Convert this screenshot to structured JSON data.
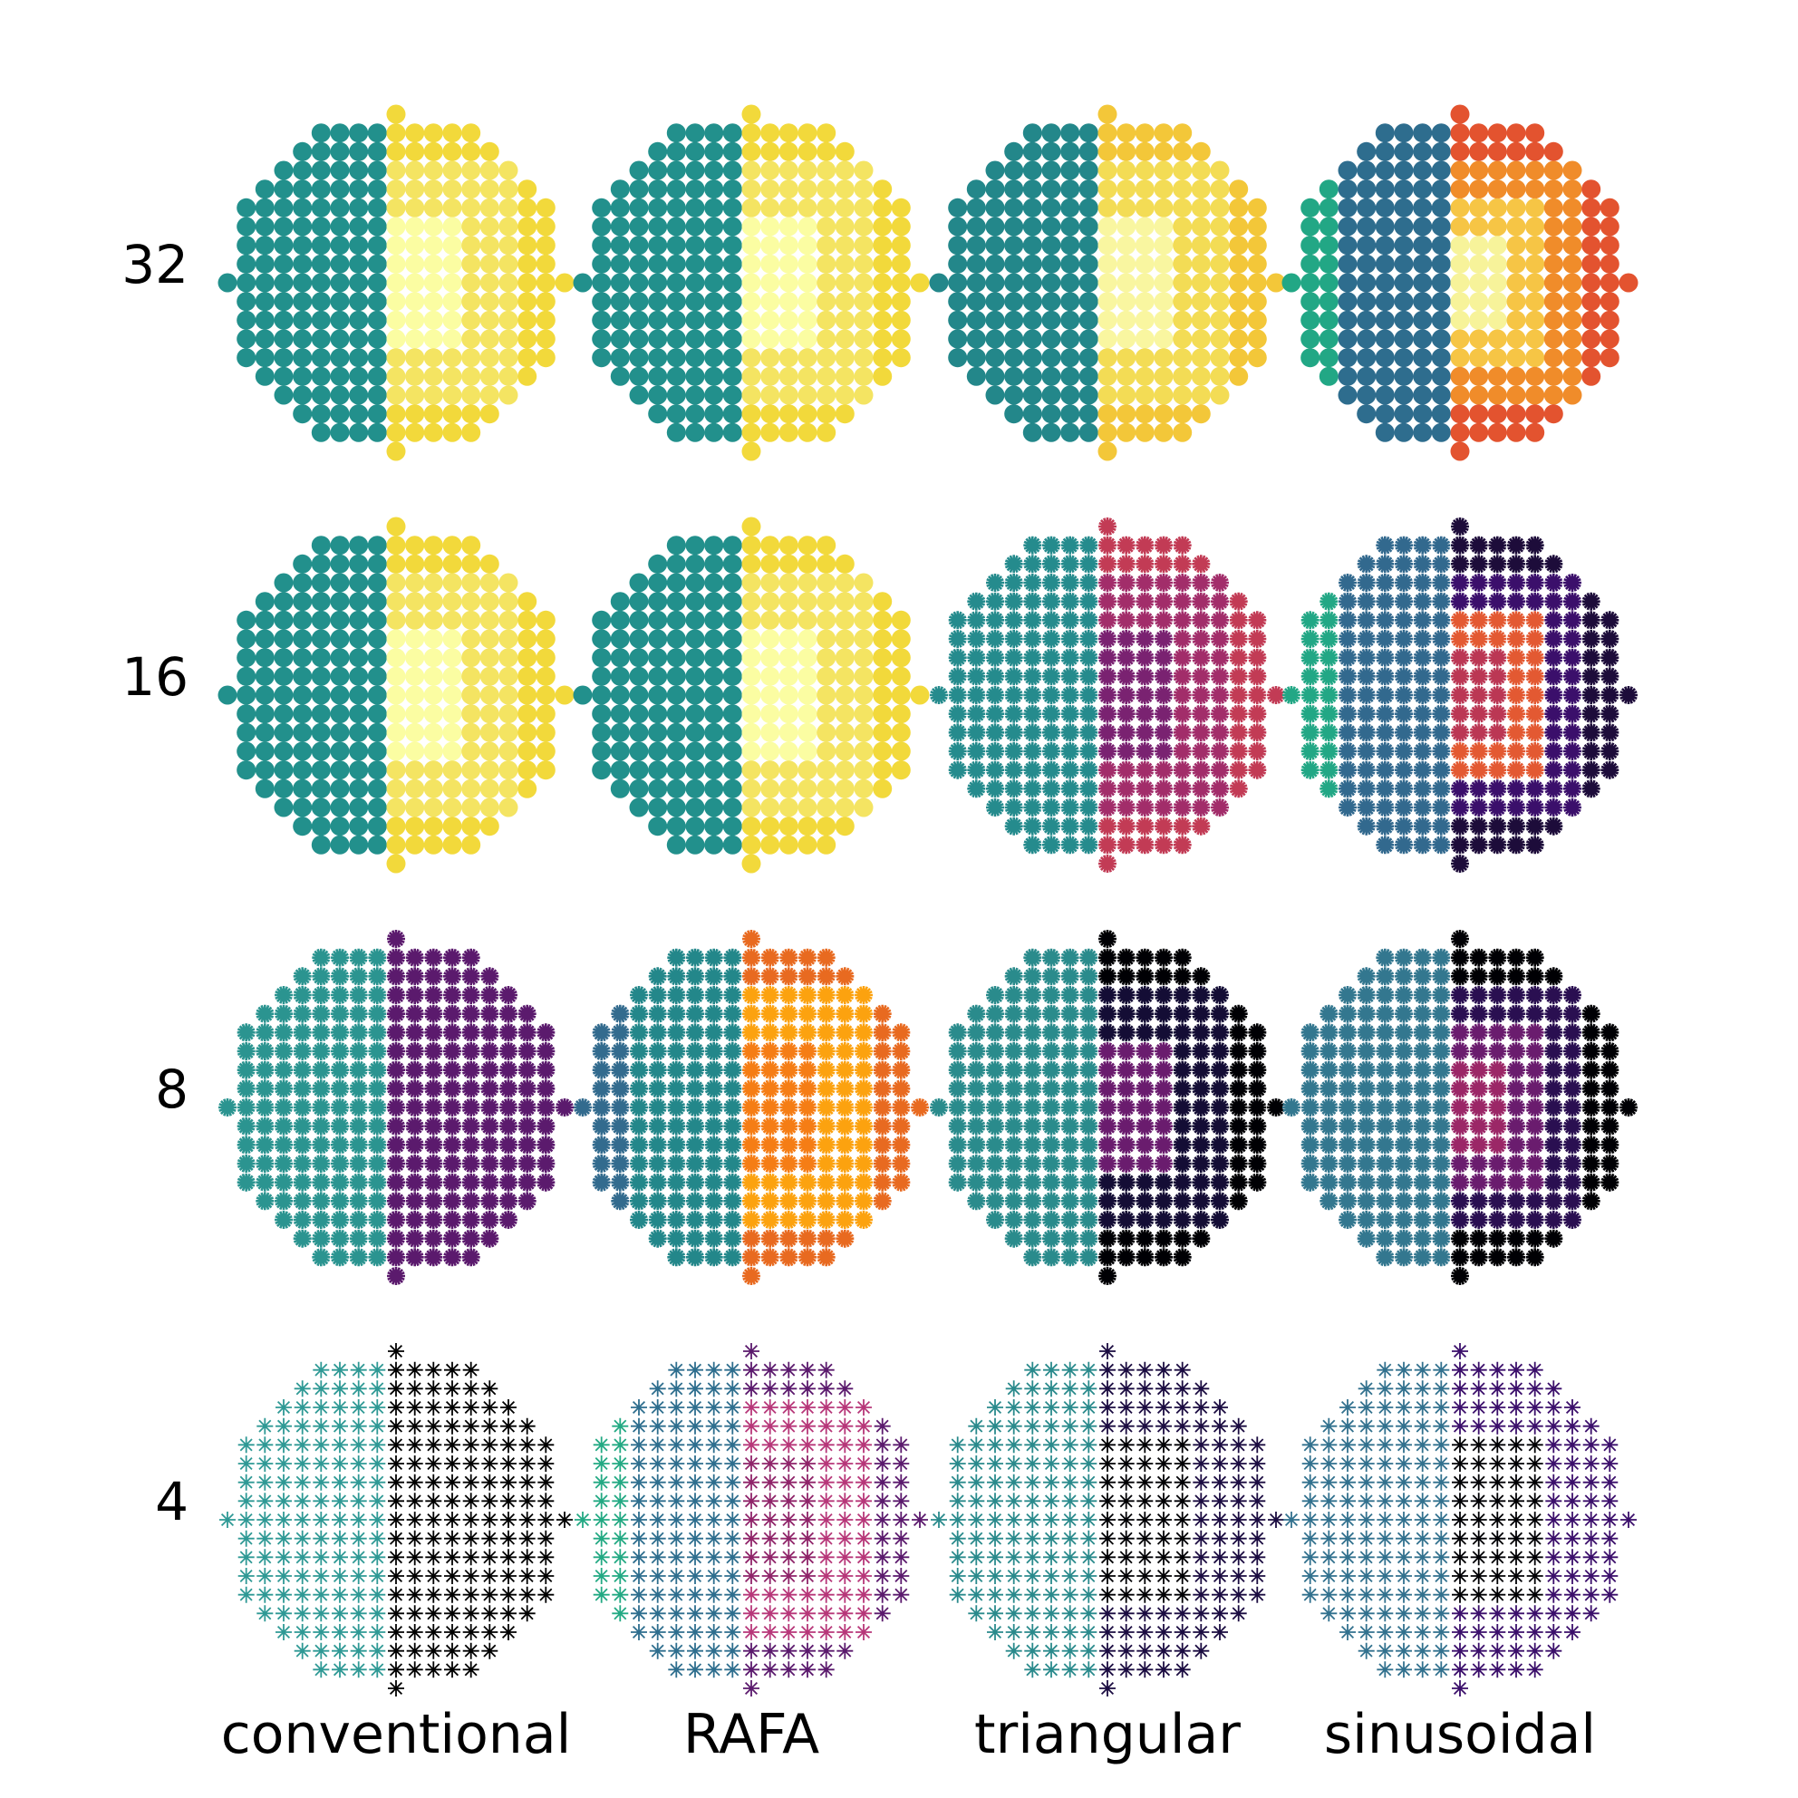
{
  "chart_data": {
    "type": "scatter",
    "title": "",
    "columns": [
      "conventional",
      "RAFA",
      "triangular",
      "sinusoidal"
    ],
    "rows": [
      "32",
      "16",
      "8",
      "4"
    ],
    "grid": false,
    "panel_shape": "circular grid of 19 x 19 sample points",
    "marker_styles": {
      "32": "filled disk",
      "16": "filled disk (conventional, RAFA) / dense star (triangular, sinusoidal)",
      "8": "dense star",
      "4": "sparse star"
    },
    "panels": [
      {
        "row": "32",
        "column": "conventional",
        "left_color": "#22908c",
        "right_colors": [
          "#fbfda2",
          "#f4e462",
          "#f2d93b"
        ]
      },
      {
        "row": "32",
        "column": "RAFA",
        "left_color": "#22908c",
        "right_colors": [
          "#fbfda2",
          "#f4e462",
          "#f2d93b"
        ]
      },
      {
        "row": "32",
        "column": "triangular",
        "left_color": "#23878a",
        "right_colors": [
          "#f9f6a0",
          "#f3dc55",
          "#f3c739"
        ]
      },
      {
        "row": "32",
        "column": "sinusoidal",
        "left_color": "#2e6d8e",
        "outer_left_color": "#22a785",
        "right_colors": [
          "#f7f39a",
          "#f6c545",
          "#f08c2a",
          "#e3532f"
        ]
      },
      {
        "row": "16",
        "column": "conventional",
        "left_color": "#22908c",
        "right_colors": [
          "#fbfda2",
          "#f4e462",
          "#f2d93b"
        ]
      },
      {
        "row": "16",
        "column": "RAFA",
        "left_color": "#22908c",
        "right_colors": [
          "#fbfda2",
          "#f4e462",
          "#f2d93b"
        ]
      },
      {
        "row": "16",
        "column": "triangular",
        "left_color": "#258b8d",
        "right_colors": [
          "#7a2271",
          "#a22d6a",
          "#c23b55"
        ]
      },
      {
        "row": "16",
        "column": "sinusoidal",
        "left_color": "#32698e",
        "outer_left_color": "#22a785",
        "right_colors": [
          "#bb3754",
          "#e35932",
          "#3b0f6b",
          "#1d0c3a"
        ]
      },
      {
        "row": "8",
        "column": "conventional",
        "left_color": "#2b9490",
        "right_colors": [
          "#5b1a6d"
        ]
      },
      {
        "row": "8",
        "column": "RAFA",
        "left_color": "#23878a",
        "outer_left_color": "#336b8e",
        "right_colors": [
          "#f57d15",
          "#fca20f",
          "#e86a20"
        ]
      },
      {
        "row": "8",
        "column": "triangular",
        "left_color": "#2a8b8c",
        "right_colors": [
          "#6a1c6e",
          "#140d35",
          "#000004"
        ]
      },
      {
        "row": "8",
        "column": "sinusoidal",
        "left_color": "#33778f",
        "right_colors": [
          "#9b2767",
          "#6a1c6e",
          "#2a0f51",
          "#000004"
        ]
      },
      {
        "row": "4",
        "column": "conventional",
        "left_color": "#2f9995",
        "right_colors": [
          "#000000"
        ]
      },
      {
        "row": "4",
        "column": "RAFA",
        "left_color": "#2e6e8e",
        "outer_left_color": "#23a983",
        "right_colors": [
          "#8f2469",
          "#b73779",
          "#5b1a6d"
        ]
      },
      {
        "row": "4",
        "column": "triangular",
        "left_color": "#2a8a8c",
        "right_colors": [
          "#000004",
          "#1b0c41"
        ]
      },
      {
        "row": "4",
        "column": "sinusoidal",
        "left_color": "#32718e",
        "right_colors": [
          "#000004",
          "#3b0f6b"
        ]
      }
    ]
  }
}
